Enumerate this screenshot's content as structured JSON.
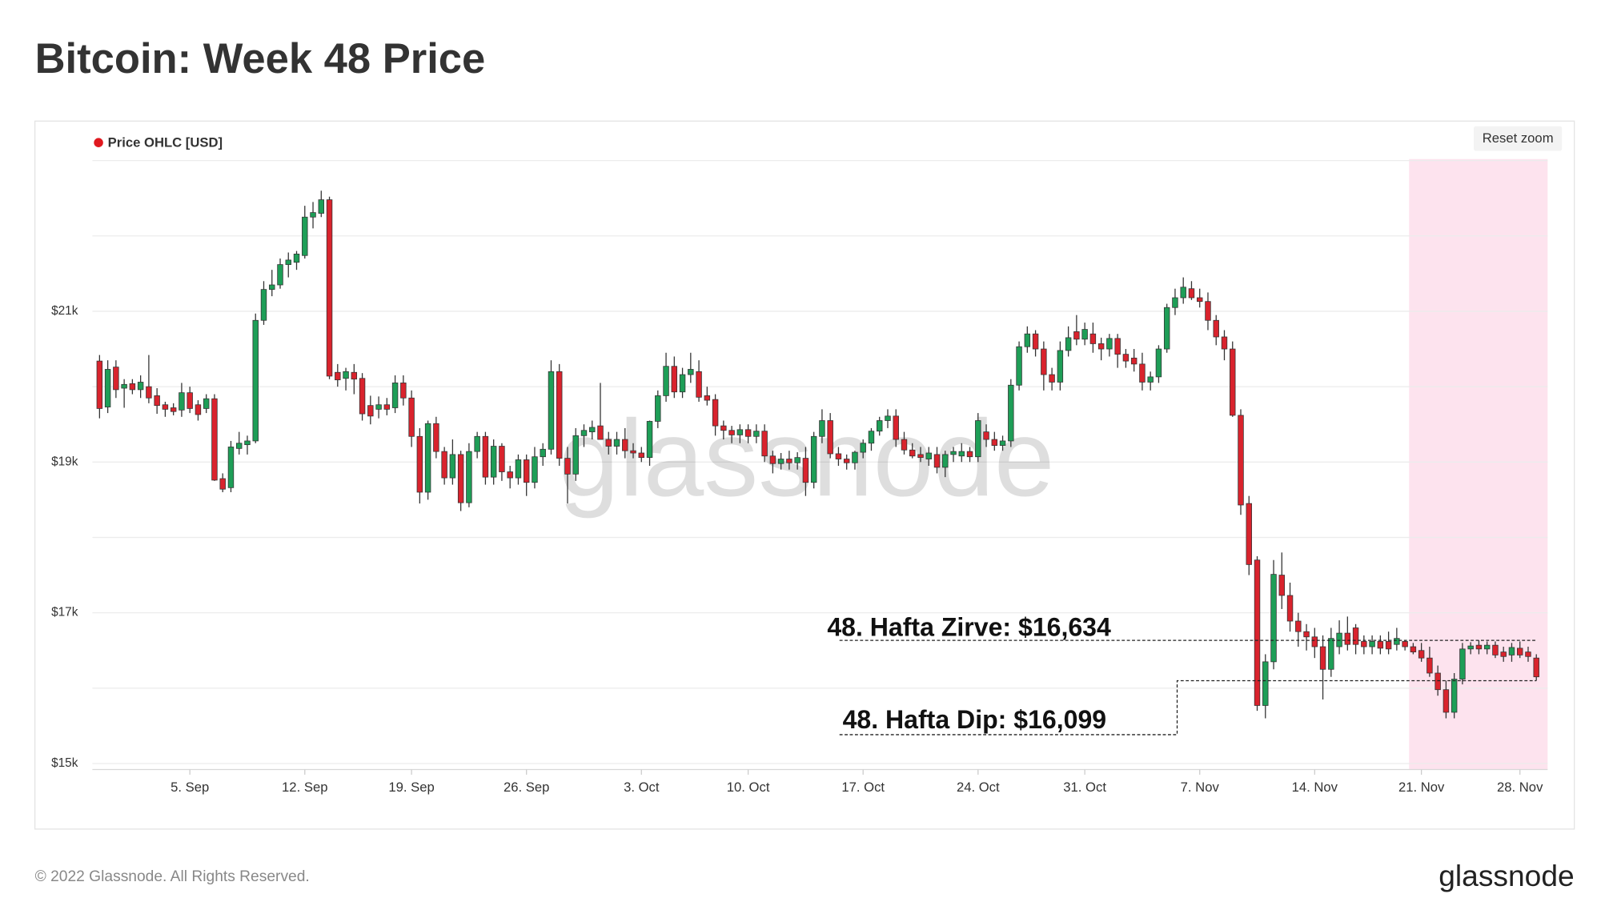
{
  "chart_data": {
    "type": "candlestick",
    "title": "Bitcoin: Week 48 Price",
    "categories": [
      null,
      null,
      null,
      null,
      null,
      null,
      null,
      null,
      null,
      null,
      null,
      "5. Sep",
      null,
      null,
      null,
      null,
      null,
      null,
      null,
      null,
      null,
      null,
      null,
      null,
      null,
      "12. Sep",
      null,
      null,
      null,
      null,
      null,
      null,
      null,
      null,
      null,
      null,
      null,
      null,
      "19. Sep",
      null,
      null,
      null,
      null,
      null,
      null,
      null,
      null,
      null,
      null,
      null,
      null,
      null,
      "26. Sep",
      null,
      null,
      null,
      null,
      null,
      null,
      null,
      null,
      null,
      null,
      null,
      null,
      null,
      "3. Oct",
      null,
      null,
      null,
      null,
      null,
      null,
      null,
      null,
      null,
      null,
      null,
      null,
      "10. Oct",
      null,
      null,
      null,
      null,
      null,
      null,
      null,
      null,
      null,
      null,
      null,
      null,
      null,
      "17. Oct",
      null,
      null,
      null,
      null,
      null,
      null,
      null,
      null,
      null,
      null,
      null,
      null,
      null,
      "24. Oct",
      null,
      null,
      null,
      null,
      null,
      null,
      null,
      null,
      null,
      null,
      null,
      null,
      "31. Oct",
      null,
      null,
      null,
      null,
      null,
      null,
      null,
      null,
      null,
      null,
      null,
      null,
      null,
      "7. Nov",
      null,
      null,
      null,
      null,
      null,
      null,
      null,
      null,
      null,
      null,
      null,
      null,
      null,
      "14. Nov",
      null,
      null,
      null,
      null,
      null,
      null,
      null,
      null,
      null,
      null,
      null,
      null,
      "21. Nov",
      null,
      null,
      null,
      null,
      null,
      null,
      null,
      null,
      null,
      null,
      null,
      "28. Nov",
      null,
      null
    ],
    "series": [
      {
        "name": "Price OHLC [USD]",
        "color": "#e0191f",
        "open": [
          20340,
          19730,
          20260,
          19980,
          20040,
          19960,
          20000,
          19880,
          19760,
          19720,
          19690,
          19920,
          19760,
          19710,
          19840,
          18780,
          18660,
          19180,
          19230,
          19280,
          20880,
          21290,
          21350,
          21620,
          21650,
          21740,
          22250,
          22300,
          22480,
          20190,
          20110,
          20190,
          20110,
          19750,
          19700,
          19760,
          19720,
          20050,
          19850,
          19340,
          18600,
          19510,
          19140,
          18790,
          19100,
          18460,
          19140,
          19340,
          18800,
          19210,
          18870,
          18790,
          19030,
          18730,
          19070,
          19170,
          20200,
          19050,
          18840,
          19350,
          19400,
          19480,
          19300,
          19210,
          19300,
          19150,
          19120,
          19060,
          19540,
          19880,
          20270,
          19930,
          20160,
          20200,
          19880,
          19830,
          19480,
          19420,
          19360,
          19430,
          19340,
          19410,
          19080,
          18980,
          19040,
          18990,
          19050,
          18730,
          19340,
          19550,
          19110,
          19040,
          18990,
          19130,
          19250,
          19410,
          19550,
          19610,
          19300,
          19160,
          19100,
          19040,
          19100,
          18930,
          19100,
          19080,
          19140,
          19070,
          19400,
          19300,
          19220,
          19280,
          20020,
          20530,
          20700,
          20500,
          20160,
          20060,
          20480,
          20730,
          20630,
          20700,
          20570,
          20500,
          20640,
          20430,
          20380,
          20300,
          20060,
          20130,
          20500,
          21050,
          21180,
          21300,
          21180,
          21130,
          20880,
          20660,
          20500,
          19620,
          18450,
          17700,
          15770,
          16350,
          17500,
          17230,
          16890,
          16750,
          16680,
          16550,
          16250,
          16550,
          16730,
          16800,
          16620,
          16550,
          16620,
          16620,
          16580,
          16620,
          16550,
          16500,
          16400,
          16200,
          15980,
          15680,
          16120,
          16520,
          16570,
          16520,
          16570,
          16480,
          16440,
          16530,
          16480,
          16400
        ],
        "high": [
          20420,
          20350,
          20350,
          20100,
          20100,
          20150,
          20420,
          19980,
          19800,
          19780,
          20050,
          20000,
          19820,
          19900,
          19900,
          18850,
          19280,
          19400,
          19350,
          20970,
          21400,
          21550,
          21700,
          21780,
          21800,
          22400,
          22450,
          22600,
          22520,
          20300,
          20250,
          20300,
          20180,
          19880,
          19870,
          19850,
          20150,
          20150,
          19950,
          19450,
          19550,
          19600,
          19200,
          19300,
          19150,
          19250,
          19400,
          19400,
          19300,
          19250,
          18950,
          19100,
          19100,
          19200,
          19250,
          20350,
          20300,
          19200,
          19450,
          19500,
          19550,
          20050,
          19400,
          19400,
          19450,
          19250,
          19200,
          19550,
          19950,
          20450,
          20400,
          20250,
          20450,
          20350,
          20000,
          19900,
          19550,
          19480,
          19500,
          19500,
          19500,
          19500,
          19150,
          19120,
          19150,
          19130,
          19200,
          19400,
          19700,
          19650,
          19200,
          19100,
          19150,
          19300,
          19450,
          19600,
          19700,
          19700,
          19400,
          19250,
          19200,
          19200,
          19200,
          19150,
          19200,
          19250,
          19200,
          19650,
          19500,
          19400,
          19350,
          20100,
          20600,
          20800,
          20750,
          20600,
          20250,
          20600,
          20800,
          20950,
          20850,
          20850,
          20650,
          20700,
          20700,
          20500,
          20500,
          20450,
          20200,
          20550,
          21100,
          21300,
          21450,
          21400,
          21300,
          21250,
          20950,
          20750,
          20600,
          19700,
          18550,
          17750,
          16450,
          17700,
          17800,
          17400,
          17000,
          16850,
          16800,
          16700,
          16800,
          16900,
          16950,
          16850,
          16700,
          16700,
          16700,
          16750,
          16800,
          16630,
          16600,
          16600,
          16550,
          16300,
          16100,
          16200,
          16600,
          16610,
          16634,
          16620,
          16620,
          16550,
          16600,
          16620,
          16550,
          16450
        ],
        "low": [
          19580,
          19650,
          19850,
          19720,
          19900,
          19850,
          19780,
          19640,
          19600,
          19620,
          19600,
          19650,
          19550,
          19650,
          18750,
          18600,
          18600,
          19100,
          19100,
          19250,
          20820,
          21200,
          21300,
          21450,
          21550,
          21700,
          22100,
          22250,
          20100,
          20000,
          19950,
          19900,
          19550,
          19500,
          19580,
          19620,
          19650,
          19750,
          19200,
          18450,
          18500,
          19050,
          18700,
          18700,
          18350,
          18400,
          19050,
          18700,
          18700,
          18750,
          18650,
          18700,
          18550,
          18650,
          18950,
          19100,
          18950,
          18450,
          18750,
          19200,
          19300,
          19300,
          19100,
          19100,
          19050,
          19050,
          19000,
          18950,
          19450,
          19800,
          19850,
          19850,
          20050,
          19800,
          19750,
          19350,
          19300,
          19250,
          19250,
          19250,
          19250,
          19000,
          18850,
          18900,
          18900,
          18900,
          18550,
          18650,
          19250,
          19050,
          18950,
          18900,
          18900,
          19050,
          19150,
          19350,
          19450,
          19200,
          19100,
          19050,
          19000,
          18950,
          18850,
          18800,
          19000,
          19000,
          19000,
          19000,
          19200,
          19150,
          19150,
          19200,
          19950,
          20450,
          20400,
          19950,
          19950,
          19950,
          20400,
          20550,
          20550,
          20450,
          20350,
          20400,
          20250,
          20250,
          20200,
          19950,
          19950,
          20050,
          20450,
          20950,
          21100,
          21150,
          21050,
          20750,
          20550,
          20350,
          19600,
          18300,
          17500,
          15700,
          15600,
          16250,
          17050,
          16750,
          16550,
          16500,
          16400,
          15850,
          16150,
          16450,
          16500,
          16450,
          16450,
          16450,
          16450,
          16450,
          16500,
          16500,
          16450,
          16350,
          16150,
          15900,
          15600,
          15600,
          16050,
          16450,
          16450,
          16450,
          16400,
          16350,
          16350,
          16400,
          16350,
          16099
        ],
        "close": [
          19710,
          20230,
          19960,
          20030,
          19960,
          20060,
          19850,
          19750,
          19700,
          19670,
          19920,
          19710,
          19630,
          19840,
          18760,
          18640,
          19200,
          19250,
          19280,
          20880,
          21290,
          21350,
          21620,
          21680,
          21760,
          22250,
          22310,
          22480,
          20140,
          20090,
          20200,
          20100,
          19640,
          19610,
          19760,
          19700,
          20050,
          19850,
          19340,
          18600,
          19510,
          19140,
          18790,
          19100,
          18460,
          19140,
          19340,
          18800,
          19210,
          18870,
          18790,
          19030,
          18730,
          19070,
          19170,
          20200,
          19050,
          18840,
          19350,
          19420,
          19460,
          19300,
          19210,
          19300,
          19150,
          19120,
          19060,
          19540,
          19880,
          20270,
          19930,
          20160,
          20230,
          19860,
          19820,
          19480,
          19420,
          19360,
          19430,
          19340,
          19410,
          19080,
          18980,
          19040,
          18990,
          19060,
          18730,
          19340,
          19550,
          19110,
          19040,
          18990,
          19130,
          19250,
          19410,
          19550,
          19610,
          19300,
          19160,
          19080,
          19060,
          19120,
          18930,
          19100,
          19140,
          19140,
          19070,
          19550,
          19300,
          19220,
          19280,
          20020,
          20530,
          20700,
          20500,
          20160,
          20060,
          20480,
          20650,
          20630,
          20760,
          20570,
          20500,
          20640,
          20430,
          20340,
          20300,
          20060,
          20130,
          20500,
          21050,
          21180,
          21320,
          21180,
          21130,
          20880,
          20660,
          20500,
          19620,
          18430,
          17640,
          15770,
          16350,
          17510,
          17230,
          16890,
          16750,
          16680,
          16550,
          16250,
          16660,
          16730,
          16580,
          16580,
          16550,
          16620,
          16530,
          16520,
          16660,
          16550,
          16480,
          16400,
          16200,
          15980,
          15680,
          16120,
          16520,
          16560,
          16520,
          16570,
          16440,
          16420,
          16540,
          16440,
          16420,
          16150
        ]
      }
    ],
    "up_color": "#1e9e57",
    "down_color": "#d9232d",
    "ylim": [
      14920,
      23020
    ],
    "yticks": [
      {
        "value": 15000,
        "label": "$15k"
      },
      {
        "value": 17000,
        "label": "$17k"
      },
      {
        "value": 19000,
        "label": "$19k"
      },
      {
        "value": 21000,
        "label": "$21k"
      }
    ],
    "minor_grid": [
      16000,
      18000,
      20000,
      22000,
      23000
    ],
    "grid": true,
    "highlight": {
      "from": "21. Nov",
      "color": "#fde3ee"
    },
    "annotations": [
      {
        "text": "48. Hafta Zirve: $16,634",
        "value": 16634
      },
      {
        "text": "48. Hafta Dip: $16,099",
        "value": 16099
      }
    ],
    "watermark": "glassnode"
  },
  "controls": {
    "reset_zoom": "Reset zoom"
  },
  "footer": {
    "copyright": "© 2022 Glassnode. All Rights Reserved.",
    "logo": "glassnode"
  }
}
